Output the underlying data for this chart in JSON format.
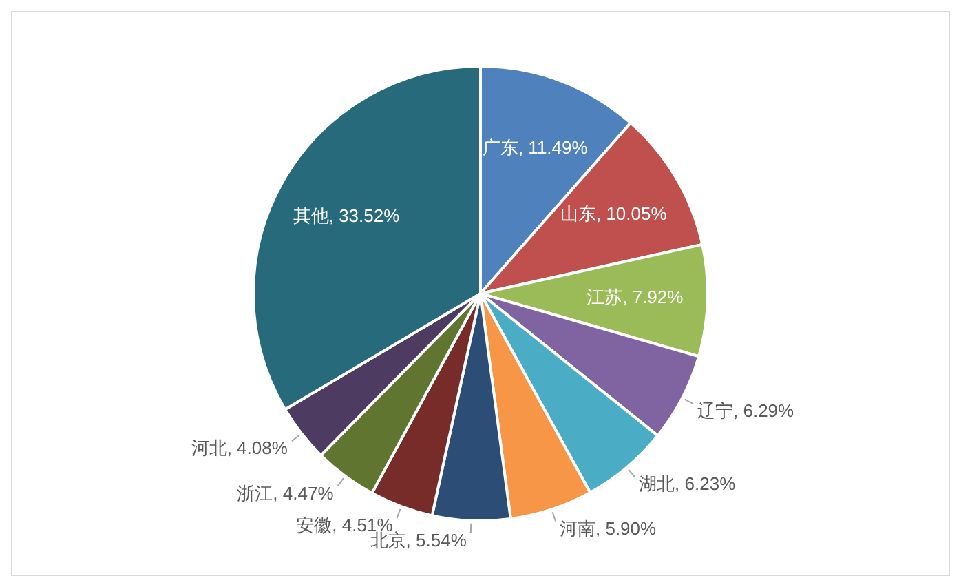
{
  "chart_data": {
    "type": "pie",
    "categories": [
      "广东",
      "山东",
      "江苏",
      "辽宁",
      "湖北",
      "河南",
      "北京",
      "安徽",
      "浙江",
      "河北",
      "其他"
    ],
    "values": [
      11.49,
      10.05,
      7.92,
      6.29,
      6.23,
      5.9,
      5.54,
      4.51,
      4.47,
      4.08,
      33.52
    ],
    "value_labels": [
      ", 11.49%",
      ", 10.05%",
      ", 7.92%",
      ", 6.29%",
      ", 6.23%",
      ", 5.90%",
      ", 5.54%",
      ", 4.51%",
      ", 4.47%",
      ", 4.08%",
      ", 33.52%"
    ],
    "colors": [
      "#4f81bd",
      "#c0504d",
      "#9bbb59",
      "#8064a2",
      "#4bacc6",
      "#f79646",
      "#2c4d75",
      "#772c2a",
      "#5f7530",
      "#4d3b62",
      "#276a7c"
    ],
    "legend": false
  }
}
